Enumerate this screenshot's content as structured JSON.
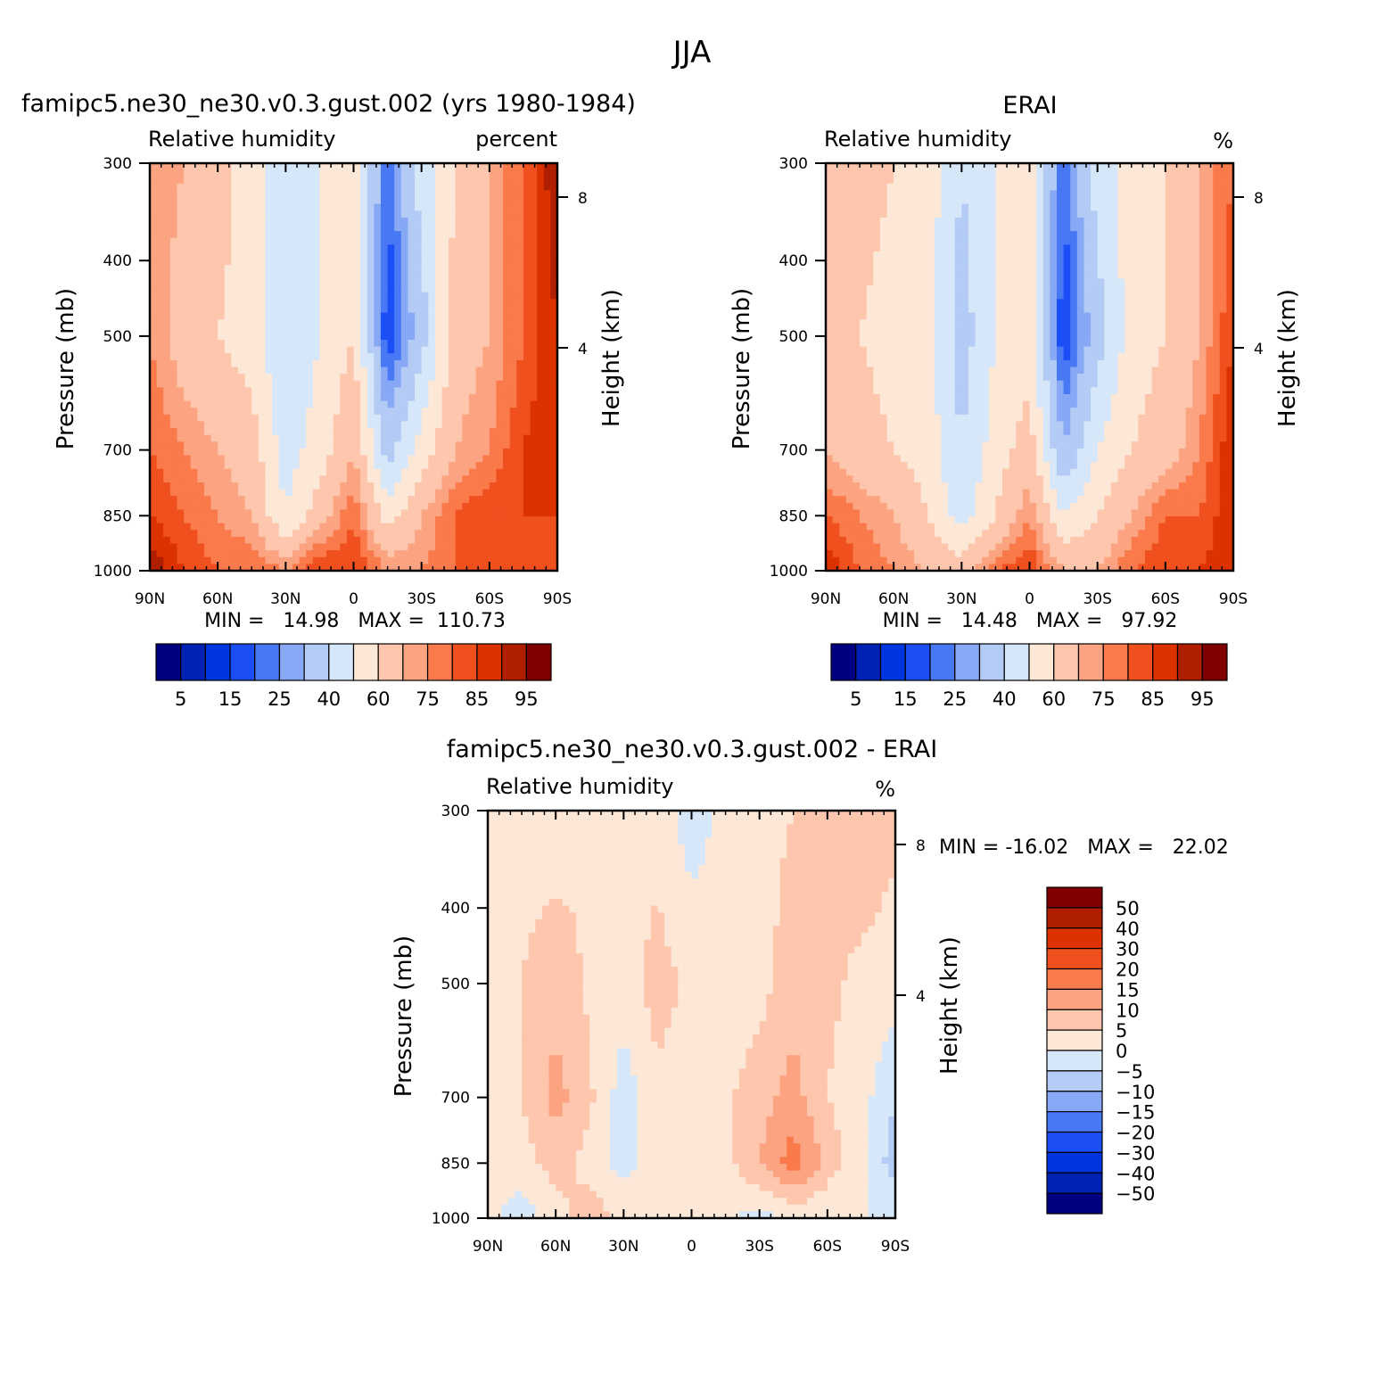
{
  "figure": {
    "title": "JJA",
    "panels": [
      {
        "id": "model",
        "title": "famipc5.ne30_ne30.v0.3.gust.002 (yrs 1980-1984)",
        "left_label": "Relative humidity",
        "right_label": "percent",
        "stats": "MIN =   14.98   MAX =  110.73",
        "colorbar": "abs"
      },
      {
        "id": "obs",
        "title": "ERAI",
        "left_label": "Relative humidity",
        "right_label": "%",
        "stats": "MIN =   14.48   MAX =   97.92",
        "colorbar": "abs"
      },
      {
        "id": "diff",
        "title": "famipc5.ne30_ne30.v0.3.gust.002 - ERAI",
        "left_label": "Relative humidity",
        "right_label": "%",
        "stats": "MIN = -16.02   MAX =   22.02",
        "colorbar": "diff"
      }
    ]
  },
  "chart_data": [
    {
      "type": "heatmap",
      "panel": "model",
      "x": {
        "label": "",
        "range": [
          90,
          -90
        ],
        "ticks": [
          90,
          60,
          30,
          0,
          -30,
          -60,
          -90
        ],
        "tick_labels": [
          "90N",
          "60N",
          "30N",
          "0",
          "30S",
          "60S",
          "90S"
        ]
      },
      "y_left": {
        "label": "Pressure (mb)",
        "range": [
          300,
          1000
        ],
        "scale": "log",
        "ticks": [
          300,
          400,
          500,
          700,
          850,
          1000
        ],
        "tick_labels": [
          "300",
          "400",
          "500",
          "700",
          "850",
          "1000"
        ]
      },
      "y_right": {
        "label": "Height (km)",
        "ticks": [
          8,
          4
        ],
        "tick_labels": [
          "8",
          "4"
        ]
      },
      "profile": {
        "lat": [
          90,
          75,
          60,
          45,
          30,
          15,
          0,
          -15,
          -30,
          -45,
          -60,
          -75,
          -90
        ],
        "levels": [
          300,
          500,
          700,
          850,
          1000
        ],
        "rh": [
          [
            75,
            70,
            65,
            55,
            45,
            50,
            55,
            20,
            45,
            60,
            70,
            80,
            95
          ],
          [
            75,
            65,
            60,
            55,
            40,
            50,
            60,
            15,
            35,
            65,
            70,
            80,
            90
          ],
          [
            80,
            75,
            70,
            65,
            45,
            55,
            70,
            35,
            55,
            70,
            75,
            85,
            90
          ],
          [
            85,
            80,
            75,
            70,
            50,
            65,
            80,
            55,
            70,
            80,
            85,
            85,
            85
          ],
          [
            95,
            85,
            80,
            80,
            75,
            85,
            85,
            75,
            75,
            80,
            85,
            80,
            80
          ]
        ]
      },
      "min": 14.98,
      "max": 110.73
    },
    {
      "type": "heatmap",
      "panel": "obs",
      "x": {
        "label": "",
        "range": [
          90,
          -90
        ],
        "ticks": [
          90,
          60,
          30,
          0,
          -30,
          -60,
          -90
        ],
        "tick_labels": [
          "90N",
          "60N",
          "30N",
          "0",
          "30S",
          "60S",
          "90S"
        ]
      },
      "y_left": {
        "label": "Pressure (mb)",
        "range": [
          300,
          1000
        ],
        "scale": "log",
        "ticks": [
          300,
          400,
          500,
          700,
          850,
          1000
        ],
        "tick_labels": [
          "300",
          "400",
          "500",
          "700",
          "850",
          "1000"
        ]
      },
      "y_right": {
        "label": "Height (km)",
        "ticks": [
          8,
          4
        ],
        "tick_labels": [
          "8",
          "4"
        ]
      },
      "profile": {
        "lat": [
          90,
          75,
          60,
          45,
          30,
          15,
          0,
          -15,
          -30,
          -45,
          -60,
          -75,
          -90
        ],
        "levels": [
          300,
          500,
          700,
          850,
          1000
        ],
        "rh": [
          [
            70,
            65,
            60,
            55,
            40,
            50,
            55,
            20,
            45,
            55,
            60,
            70,
            80
          ],
          [
            65,
            60,
            55,
            55,
            35,
            50,
            55,
            15,
            35,
            55,
            60,
            70,
            85
          ],
          [
            70,
            65,
            60,
            55,
            40,
            55,
            65,
            30,
            50,
            60,
            65,
            75,
            90
          ],
          [
            80,
            75,
            70,
            60,
            45,
            60,
            75,
            50,
            60,
            70,
            80,
            80,
            90
          ],
          [
            90,
            80,
            75,
            70,
            65,
            80,
            85,
            70,
            70,
            80,
            85,
            85,
            90
          ]
        ]
      },
      "min": 14.48,
      "max": 97.92
    },
    {
      "type": "heatmap",
      "panel": "diff",
      "x": {
        "label": "",
        "range": [
          90,
          -90
        ],
        "ticks": [
          90,
          60,
          30,
          0,
          -30,
          -60,
          -90
        ],
        "tick_labels": [
          "90N",
          "60N",
          "30N",
          "0",
          "30S",
          "60S",
          "90S"
        ]
      },
      "y_left": {
        "label": "Pressure (mb)",
        "range": [
          300,
          1000
        ],
        "scale": "log",
        "ticks": [
          300,
          400,
          500,
          700,
          850,
          1000
        ],
        "tick_labels": [
          "300",
          "400",
          "500",
          "700",
          "850",
          "1000"
        ]
      },
      "y_right": {
        "label": "Height (km)",
        "ticks": [
          8,
          4
        ],
        "tick_labels": [
          "8",
          "4"
        ]
      },
      "profile": {
        "lat": [
          90,
          75,
          60,
          45,
          30,
          15,
          0,
          -15,
          -30,
          -45,
          -60,
          -75,
          -90
        ],
        "levels": [
          300,
          500,
          700,
          850,
          1000
        ],
        "rh": [
          [
            5,
            3,
            2,
            5,
            2,
            3,
            -3,
            2,
            3,
            5,
            5,
            8,
            6
          ],
          [
            4,
            5,
            8,
            4,
            3,
            7,
            4,
            1,
            3,
            8,
            6,
            4,
            3
          ],
          [
            3,
            5,
            12,
            6,
            -3,
            4,
            2,
            4,
            8,
            12,
            5,
            2,
            -5
          ],
          [
            4,
            3,
            7,
            3,
            -2,
            2,
            1,
            3,
            10,
            18,
            8,
            1,
            -8
          ],
          [
            1,
            -3,
            3,
            8,
            4,
            2,
            0,
            1,
            -2,
            1,
            0,
            0,
            0
          ]
        ]
      },
      "min": -16.02,
      "max": 22.02
    }
  ],
  "colorbars": {
    "abs": {
      "labels": [
        "5",
        "15",
        "25",
        "40",
        "60",
        "75",
        "85",
        "95"
      ],
      "bounds": [
        5,
        10,
        15,
        20,
        25,
        30,
        40,
        50,
        60,
        70,
        75,
        80,
        85,
        90,
        95
      ],
      "colors": [
        "#000080",
        "#0022b4",
        "#0036e0",
        "#1b4ff5",
        "#4978f5",
        "#86a8f5",
        "#b3cbf5",
        "#d6e7f9",
        "#fde7d6",
        "#fdc6ad",
        "#fca482",
        "#fa7a4c",
        "#f0501d",
        "#db3200",
        "#b01e00",
        "#800000"
      ]
    },
    "diff": {
      "labels": [
        "50",
        "40",
        "30",
        "20",
        "15",
        "10",
        "5",
        "0",
        "-5",
        "-10",
        "-15",
        "-20",
        "-30",
        "-40",
        "-50"
      ],
      "bounds": [
        -50,
        -40,
        -30,
        -20,
        -15,
        -10,
        -5,
        0,
        5,
        10,
        15,
        20,
        30,
        40,
        50
      ],
      "colors": [
        "#000080",
        "#0022b4",
        "#0036e0",
        "#1b4ff5",
        "#4978f5",
        "#86a8f5",
        "#b3cbf5",
        "#d6e7f9",
        "#fde7d6",
        "#fdc6ad",
        "#fca482",
        "#fa7a4c",
        "#f0501d",
        "#db3200",
        "#b01e00",
        "#800000"
      ]
    }
  }
}
